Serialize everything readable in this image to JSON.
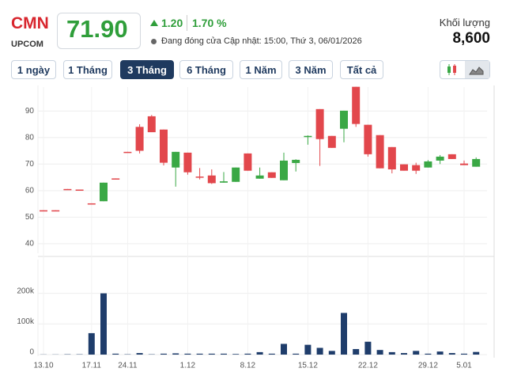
{
  "header": {
    "symbol": "CMN",
    "exchange": "UPCOM",
    "price": "71.90",
    "change": "1.20",
    "change_pct": "1.70 %",
    "status": "Đang đóng cửa",
    "updated": "Cập nhật: 15:00, Thứ 3, 06/01/2026",
    "volume_label": "Khối lượng",
    "volume": "8,600"
  },
  "range_buttons": {
    "labels": [
      "1 ngày",
      "1 Tháng",
      "3 Tháng",
      "6 Tháng",
      "1 Năm",
      "3 Năm",
      "Tất cả"
    ],
    "selected": "3 Tháng"
  },
  "chart_data": [
    {
      "type": "candlestick",
      "up_color": "#3aa845",
      "down_color": "#e2474c",
      "grid": true,
      "ylim": [
        37,
        99
      ],
      "yticks": [
        40,
        50,
        60,
        70,
        80,
        90
      ],
      "open": [
        52.6,
        52.6,
        60.6,
        60.4,
        55.2,
        56,
        64.6,
        74.6,
        84,
        88,
        83,
        68.7,
        74.3,
        65.3,
        65.7,
        63,
        63.3,
        74,
        64.5,
        66.9,
        63.9,
        70.4,
        80.3,
        90.7,
        80.6,
        83.3,
        99.1,
        84.8,
        80.9,
        76.4,
        69.9,
        69.6,
        68.7,
        71.3,
        73.7,
        70.2,
        69
      ],
      "high": [
        52.6,
        52.6,
        60.6,
        60.4,
        55.2,
        63,
        64.6,
        74.6,
        85,
        88.5,
        83,
        74.6,
        74.3,
        68.5,
        68,
        67,
        68.7,
        74,
        68.7,
        66.9,
        74.3,
        71.8,
        80.8,
        90.7,
        80.6,
        90.1,
        99.1,
        84.8,
        80.9,
        76.4,
        69.9,
        70.5,
        71.5,
        73.4,
        73.7,
        71.3,
        72.5
      ],
      "low": [
        52.4,
        52.4,
        60.4,
        60.2,
        55,
        56,
        64.4,
        74.4,
        74,
        82,
        69.5,
        61.5,
        66,
        64.2,
        62.5,
        63,
        63.3,
        67.5,
        64.5,
        64.8,
        63.9,
        67.2,
        77.3,
        69.3,
        76.1,
        78.2,
        84,
        72.8,
        68.4,
        66.5,
        67.5,
        66.3,
        68.7,
        70,
        71.9,
        69.6,
        69
      ],
      "close": [
        52.4,
        52.4,
        60.4,
        60.2,
        55,
        63,
        64.4,
        74.4,
        75,
        82,
        70.5,
        74.6,
        66.9,
        65,
        62.8,
        63.5,
        68.7,
        67.5,
        65.7,
        64.8,
        71.3,
        71.6,
        80.6,
        79.4,
        76.1,
        90.1,
        85.1,
        73.7,
        68.4,
        68,
        67.5,
        67.5,
        71,
        72.8,
        71.9,
        69.6,
        71.9
      ]
    },
    {
      "type": "bar",
      "color": "#1f3d6b",
      "ylim": [
        0,
        305000
      ],
      "yticks": [
        0,
        {
          "value": 100000,
          "label": "100k"
        },
        {
          "value": 200000,
          "label": "200k"
        }
      ],
      "categories": [
        "13.10",
        null,
        null,
        null,
        "17.11",
        null,
        null,
        "24.11",
        null,
        null,
        null,
        null,
        "1.12",
        null,
        null,
        null,
        null,
        "8.12",
        null,
        null,
        null,
        null,
        "15.12",
        null,
        null,
        null,
        null,
        "22.12",
        null,
        null,
        null,
        null,
        "29.12",
        null,
        null,
        "5.01",
        null
      ],
      "values": [
        500,
        500,
        1000,
        1000,
        70000,
        200000,
        3000,
        1000,
        5000,
        1000,
        3000,
        4000,
        3000,
        3000,
        3000,
        3000,
        2000,
        3000,
        8000,
        3000,
        35000,
        3000,
        32000,
        22000,
        12000,
        136000,
        18000,
        42000,
        15000,
        8000,
        5000,
        12000,
        3000,
        10000,
        5000,
        3000,
        8600
      ]
    }
  ]
}
